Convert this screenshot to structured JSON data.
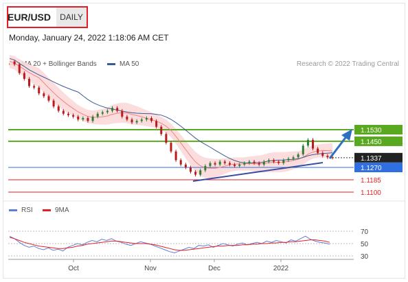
{
  "header": {
    "symbol": "EUR/USD",
    "period": "DAILY",
    "datetime": "Monday, January 24, 2022 1:18:06 AM CET"
  },
  "legend": [
    {
      "label": "MA 20 + Bollinger Bands",
      "color": "#f08080"
    },
    {
      "label": "MA 50",
      "color": "#3b5998"
    }
  ],
  "credit": "Research © 2022 Trading Central",
  "rsi_legend": [
    {
      "label": "RSI",
      "color": "#5b7fd6"
    },
    {
      "label": "9MA",
      "color": "#e41e26"
    }
  ],
  "chart_data": {
    "type": "candlestick",
    "series": [
      {
        "name": "MA 20 + Bollinger Bands",
        "color": "#f08080"
      },
      {
        "name": "MA 50",
        "color": "#3b5998"
      }
    ],
    "levels": [
      {
        "value": 1.153,
        "label": "1.1530",
        "color": "#5aa820"
      },
      {
        "value": 1.145,
        "label": "1.1450",
        "color": "#5aa820"
      },
      {
        "value": 1.1337,
        "label": "1.1337",
        "color": "#222222"
      },
      {
        "value": 1.127,
        "label": "1.1270",
        "color": "#2f6fe0"
      },
      {
        "value": 1.1185,
        "label": "1.1185",
        "color": "#e41e26"
      },
      {
        "value": 1.11,
        "label": "1.1100",
        "color": "#e41e26"
      }
    ],
    "x_ticks": [
      "Oct",
      "Nov",
      "Dec",
      "2022"
    ],
    "rsi": {
      "ticks": [
        70,
        50,
        30
      ],
      "series": [
        {
          "name": "RSI",
          "color": "#5b7fd6"
        },
        {
          "name": "9MA",
          "color": "#e41e26"
        }
      ]
    },
    "price_path": [
      1.2,
      1.198,
      1.192,
      1.188,
      1.183,
      1.182,
      1.178,
      1.176,
      1.173,
      1.169,
      1.166,
      1.164,
      1.163,
      1.162,
      1.16,
      1.161,
      1.159,
      1.162,
      1.164,
      1.165,
      1.166,
      1.168,
      1.166,
      1.162,
      1.16,
      1.158,
      1.159,
      1.16,
      1.161,
      1.159,
      1.155,
      1.15,
      1.144,
      1.138,
      1.132,
      1.129,
      1.127,
      1.124,
      1.122,
      1.125,
      1.128,
      1.13,
      1.129,
      1.131,
      1.13,
      1.129,
      1.128,
      1.129,
      1.13,
      1.131,
      1.13,
      1.129,
      1.131,
      1.132,
      1.131,
      1.13,
      1.132,
      1.133,
      1.134,
      1.136,
      1.142,
      1.146,
      1.14,
      1.137,
      1.135,
      1.134,
      1.1337
    ],
    "rsi_path": [
      62,
      58,
      52,
      47,
      44,
      46,
      42,
      40,
      43,
      39,
      41,
      38,
      44,
      47,
      50,
      48,
      52,
      55,
      53,
      57,
      55,
      58,
      54,
      52,
      49,
      47,
      50,
      53,
      51,
      49,
      46,
      43,
      40,
      37,
      35,
      38,
      41,
      44,
      42,
      47,
      46,
      48,
      44,
      47,
      50,
      48,
      46,
      49,
      51,
      48,
      50,
      52,
      50,
      54,
      52,
      55,
      53,
      51,
      56,
      54,
      58,
      62,
      57,
      54,
      52,
      51,
      49
    ],
    "rsi_ma_path": [
      60,
      58,
      55,
      52,
      50,
      48,
      46,
      45,
      44,
      43,
      42,
      42,
      43,
      44,
      46,
      47,
      49,
      50,
      51,
      52,
      53,
      54,
      54,
      53,
      52,
      51,
      50,
      50,
      50,
      49,
      48,
      46,
      44,
      42,
      40,
      39,
      39,
      40,
      41,
      42,
      43,
      44,
      45,
      46,
      46,
      47,
      47,
      47,
      48,
      48,
      49,
      49,
      50,
      50,
      51,
      51,
      52,
      52,
      53,
      53,
      54,
      55,
      56,
      56,
      55,
      54,
      52
    ]
  }
}
